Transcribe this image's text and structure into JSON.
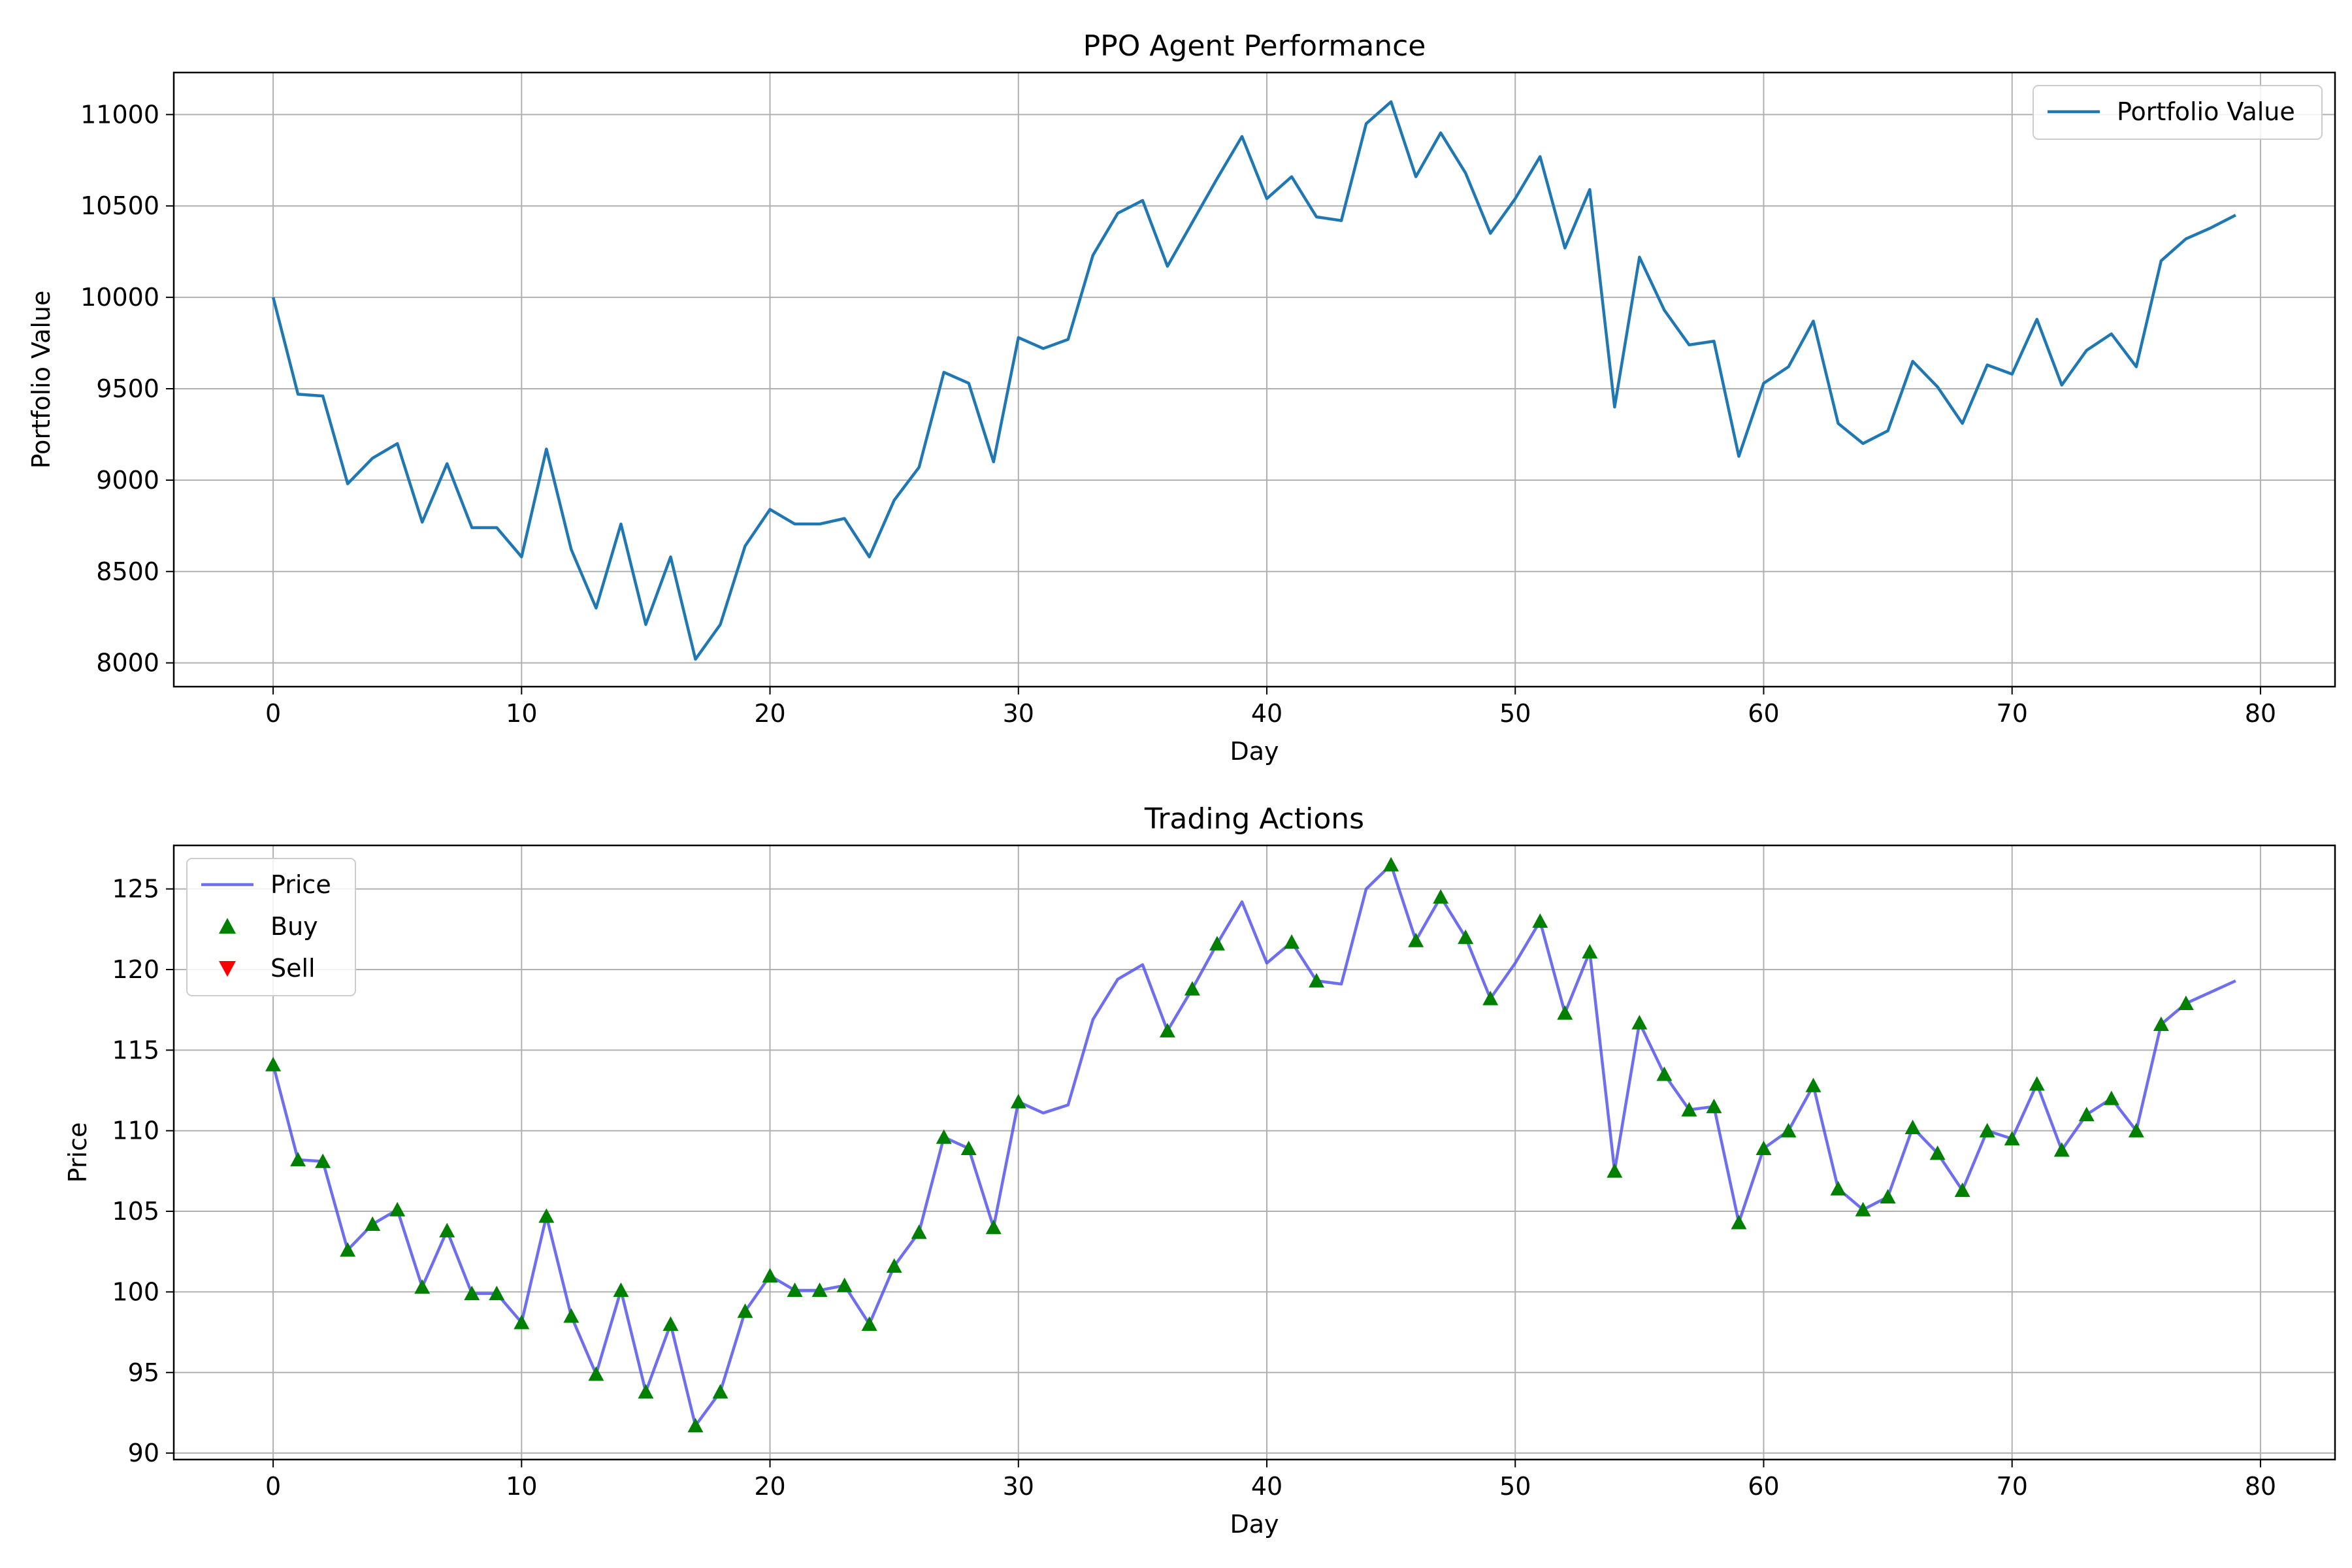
{
  "chart_data": [
    {
      "type": "line",
      "title": "PPO Agent Performance",
      "xlabel": "Day",
      "ylabel": "Portfolio Value",
      "xlim": [
        -4,
        83
      ],
      "ylim": [
        7870,
        11230
      ],
      "xticks": [
        0,
        10,
        20,
        30,
        40,
        50,
        60,
        70,
        80
      ],
      "yticks": [
        8000,
        8500,
        9000,
        9500,
        10000,
        10500,
        11000
      ],
      "grid": true,
      "legend": "top-right",
      "x": [
        0,
        1,
        2,
        3,
        4,
        5,
        6,
        7,
        8,
        9,
        10,
        11,
        12,
        13,
        14,
        15,
        16,
        17,
        18,
        19,
        20,
        21,
        22,
        23,
        24,
        25,
        26,
        27,
        28,
        29,
        30,
        31,
        32,
        33,
        34,
        35,
        36,
        37,
        38,
        39,
        40,
        41,
        42,
        43,
        44,
        45,
        46,
        47,
        48,
        49,
        50,
        51,
        52,
        53,
        54,
        55,
        56,
        57,
        58,
        59,
        60,
        61,
        62,
        63,
        64,
        65,
        66,
        67,
        68,
        69,
        70,
        71,
        72,
        73,
        74,
        75,
        76,
        77,
        78,
        79
      ],
      "series": [
        {
          "name": "Portfolio Value",
          "color": "#1f77b4",
          "values": [
            10000,
            9470,
            9460,
            8980,
            9120,
            9200,
            8770,
            9090,
            8740,
            8740,
            8580,
            9170,
            8620,
            8300,
            8760,
            8210,
            8580,
            8020,
            8210,
            8640,
            8840,
            8760,
            8760,
            8790,
            8580,
            8890,
            9070,
            9590,
            9530,
            9100,
            9780,
            9720,
            9770,
            10230,
            10460,
            10530,
            10170,
            10410,
            10650,
            10880,
            10540,
            10660,
            10440,
            10420,
            10950,
            11070,
            10660,
            10900,
            10680,
            10350,
            10540,
            10770,
            10270,
            10590,
            9400,
            10220,
            9930,
            9740,
            9760,
            9130,
            9530,
            9620,
            9870,
            9310,
            9200,
            9270,
            9650,
            9510,
            9310,
            9630,
            9580,
            9880,
            9520,
            9710,
            9800,
            9620,
            10200,
            10320,
            10380,
            10450
          ]
        }
      ]
    },
    {
      "type": "line",
      "title": "Trading Actions",
      "xlabel": "Day",
      "ylabel": "Price",
      "xlim": [
        -4,
        83
      ],
      "ylim": [
        89.6,
        127.7
      ],
      "xticks": [
        0,
        10,
        20,
        30,
        40,
        50,
        60,
        70,
        80
      ],
      "yticks": [
        90,
        95,
        100,
        105,
        110,
        115,
        120,
        125
      ],
      "grid": true,
      "legend": "top-left",
      "x": [
        0,
        1,
        2,
        3,
        4,
        5,
        6,
        7,
        8,
        9,
        10,
        11,
        12,
        13,
        14,
        15,
        16,
        17,
        18,
        19,
        20,
        21,
        22,
        23,
        24,
        25,
        26,
        27,
        28,
        29,
        30,
        31,
        32,
        33,
        34,
        35,
        36,
        37,
        38,
        39,
        40,
        41,
        42,
        43,
        44,
        45,
        46,
        47,
        48,
        49,
        50,
        51,
        52,
        53,
        54,
        55,
        56,
        57,
        58,
        59,
        60,
        61,
        62,
        63,
        64,
        65,
        66,
        67,
        68,
        69,
        70,
        71,
        72,
        73,
        74,
        75,
        76,
        77,
        78,
        79
      ],
      "series": [
        {
          "name": "Price",
          "color": "#5555ee",
          "marker": "line",
          "values": [
            114.1,
            108.2,
            108.1,
            102.6,
            104.2,
            105.1,
            100.3,
            103.8,
            99.9,
            99.9,
            98.1,
            104.7,
            98.5,
            94.9,
            100.1,
            93.8,
            98.0,
            91.7,
            93.8,
            98.8,
            101.0,
            100.1,
            100.1,
            100.4,
            98.0,
            101.6,
            103.7,
            109.6,
            108.9,
            104.0,
            111.8,
            111.1,
            111.6,
            116.9,
            119.4,
            120.3,
            116.2,
            118.8,
            121.6,
            124.2,
            120.4,
            121.7,
            119.3,
            119.1,
            125.0,
            126.5,
            121.8,
            124.5,
            122.0,
            118.2,
            120.4,
            123.0,
            117.3,
            121.1,
            107.5,
            116.7,
            113.5,
            111.3,
            111.5,
            104.3,
            108.9,
            110.0,
            112.8,
            106.4,
            105.1,
            105.9,
            110.2,
            108.6,
            106.3,
            110.0,
            109.5,
            112.9,
            108.8,
            111.0,
            112.0,
            110.0,
            116.6,
            117.9,
            118.6,
            119.3
          ]
        },
        {
          "name": "Buy",
          "color": "#008000",
          "marker": "triangle-up",
          "x": [
            0,
            1,
            2,
            3,
            4,
            5,
            6,
            7,
            8,
            9,
            10,
            11,
            12,
            13,
            14,
            15,
            16,
            17,
            18,
            19,
            20,
            21,
            22,
            23,
            24,
            25,
            26,
            27,
            28,
            29,
            30,
            36,
            37,
            38,
            41,
            42,
            45,
            46,
            47,
            48,
            49,
            51,
            52,
            53,
            54,
            55,
            56,
            57,
            58,
            59,
            60,
            61,
            62,
            63,
            64,
            65,
            66,
            67,
            68,
            69,
            70,
            71,
            72,
            73,
            74,
            75,
            76,
            77
          ],
          "values": [
            114.1,
            108.2,
            108.1,
            102.6,
            104.2,
            105.1,
            100.3,
            103.8,
            99.9,
            99.9,
            98.1,
            104.7,
            98.5,
            94.9,
            100.1,
            93.8,
            98.0,
            91.7,
            93.8,
            98.8,
            101.0,
            100.1,
            100.1,
            100.4,
            98.0,
            101.6,
            103.7,
            109.6,
            108.9,
            104.0,
            111.8,
            116.2,
            118.8,
            121.6,
            121.7,
            119.3,
            126.5,
            121.8,
            124.5,
            122.0,
            118.2,
            123.0,
            117.3,
            121.1,
            107.5,
            116.7,
            113.5,
            111.3,
            111.5,
            104.3,
            108.9,
            110.0,
            112.8,
            106.4,
            105.1,
            105.9,
            110.2,
            108.6,
            106.3,
            110.0,
            109.5,
            112.9,
            108.8,
            111.0,
            112.0,
            110.0,
            116.6,
            117.9
          ]
        },
        {
          "name": "Sell",
          "color": "#ff0000",
          "marker": "triangle-down",
          "x": [],
          "values": []
        }
      ]
    }
  ]
}
